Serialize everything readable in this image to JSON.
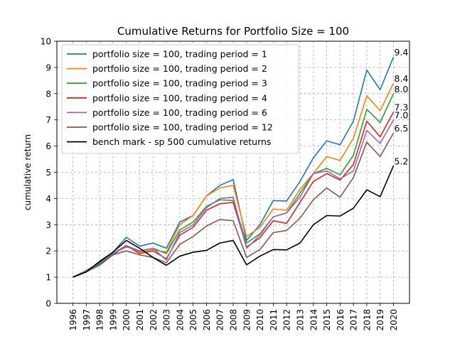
{
  "chart_data": {
    "type": "line",
    "title": "Cumulative Returns for Portfolio Size = 100",
    "xlabel": "",
    "ylabel": "cumulative return",
    "ylim": [
      0,
      10
    ],
    "yticks": [
      0,
      1,
      2,
      3,
      4,
      5,
      6,
      7,
      8,
      9,
      10
    ],
    "grid": true,
    "grid_style": "dashed",
    "legend_position": "top-left",
    "x": [
      "1996",
      "1997",
      "1998",
      "1999",
      "2000",
      "2001",
      "2002",
      "2003",
      "2004",
      "2005",
      "2006",
      "2007",
      "2008",
      "2009",
      "2010",
      "2011",
      "2012",
      "2013",
      "2014",
      "2015",
      "2016",
      "2017",
      "2018",
      "2019",
      "2020"
    ],
    "series": [
      {
        "name": "portfolio size = 100, trading period = 1",
        "color": "#1f77b4",
        "end_label": "9.4",
        "values": [
          1.0,
          1.25,
          1.55,
          1.95,
          2.52,
          2.18,
          2.3,
          2.1,
          3.1,
          3.35,
          4.1,
          4.5,
          4.72,
          2.4,
          3.0,
          3.92,
          3.9,
          4.65,
          5.55,
          6.2,
          6.05,
          6.95,
          8.9,
          8.15,
          9.4
        ]
      },
      {
        "name": "portfolio size = 100, trading period = 2",
        "color": "#ff7f0e",
        "end_label": "8.4",
        "values": [
          1.0,
          1.22,
          1.5,
          1.85,
          2.2,
          1.95,
          2.05,
          1.95,
          3.0,
          3.35,
          4.1,
          4.4,
          4.5,
          2.55,
          2.9,
          3.6,
          3.55,
          4.35,
          4.95,
          5.6,
          5.45,
          6.3,
          7.92,
          7.35,
          8.4
        ]
      },
      {
        "name": "portfolio size = 100, trading period = 3",
        "color": "#2ca02c",
        "end_label": "8.0",
        "values": [
          1.0,
          1.2,
          1.45,
          1.85,
          2.2,
          2.0,
          2.1,
          1.9,
          2.8,
          3.1,
          3.7,
          3.95,
          3.92,
          2.3,
          2.65,
          3.3,
          3.45,
          4.2,
          4.95,
          5.15,
          4.9,
          5.65,
          7.4,
          6.9,
          8.0
        ]
      },
      {
        "name": "portfolio size = 100, trading period = 4",
        "color": "#d62728",
        "end_label": "7.3",
        "values": [
          1.0,
          1.2,
          1.5,
          1.9,
          2.2,
          1.9,
          2.0,
          1.7,
          2.6,
          2.9,
          3.55,
          3.8,
          3.85,
          2.15,
          2.5,
          3.15,
          3.05,
          3.85,
          4.65,
          4.95,
          4.7,
          5.3,
          6.95,
          6.35,
          7.3
        ]
      },
      {
        "name": "portfolio size = 100, trading period = 6",
        "color": "#9467bd",
        "end_label": "7.0",
        "values": [
          1.0,
          1.2,
          1.5,
          1.9,
          2.15,
          2.0,
          2.1,
          1.65,
          2.7,
          3.0,
          3.65,
          4.0,
          4.05,
          2.1,
          2.6,
          3.3,
          3.45,
          4.05,
          4.95,
          5.05,
          4.75,
          5.05,
          6.6,
          6.1,
          7.0
        ]
      },
      {
        "name": "portfolio size = 100, trading period = 12",
        "color": "#8c564b",
        "end_label": "6.5",
        "values": [
          1.0,
          1.2,
          1.5,
          1.85,
          2.0,
          1.85,
          1.75,
          1.55,
          2.25,
          2.55,
          2.95,
          3.2,
          3.15,
          1.75,
          2.05,
          2.7,
          2.78,
          3.25,
          3.95,
          4.4,
          4.05,
          4.8,
          6.15,
          5.6,
          6.5
        ]
      },
      {
        "name": "bench mark - sp 500 cumulative returns",
        "color": "#000000",
        "end_label": "5.2",
        "values": [
          1.0,
          1.2,
          1.6,
          1.95,
          2.4,
          2.1,
          1.75,
          1.45,
          1.8,
          1.95,
          2.02,
          2.3,
          2.4,
          1.47,
          1.8,
          2.05,
          2.04,
          2.3,
          3.0,
          3.35,
          3.33,
          3.63,
          4.33,
          4.07,
          5.25
        ]
      }
    ]
  }
}
